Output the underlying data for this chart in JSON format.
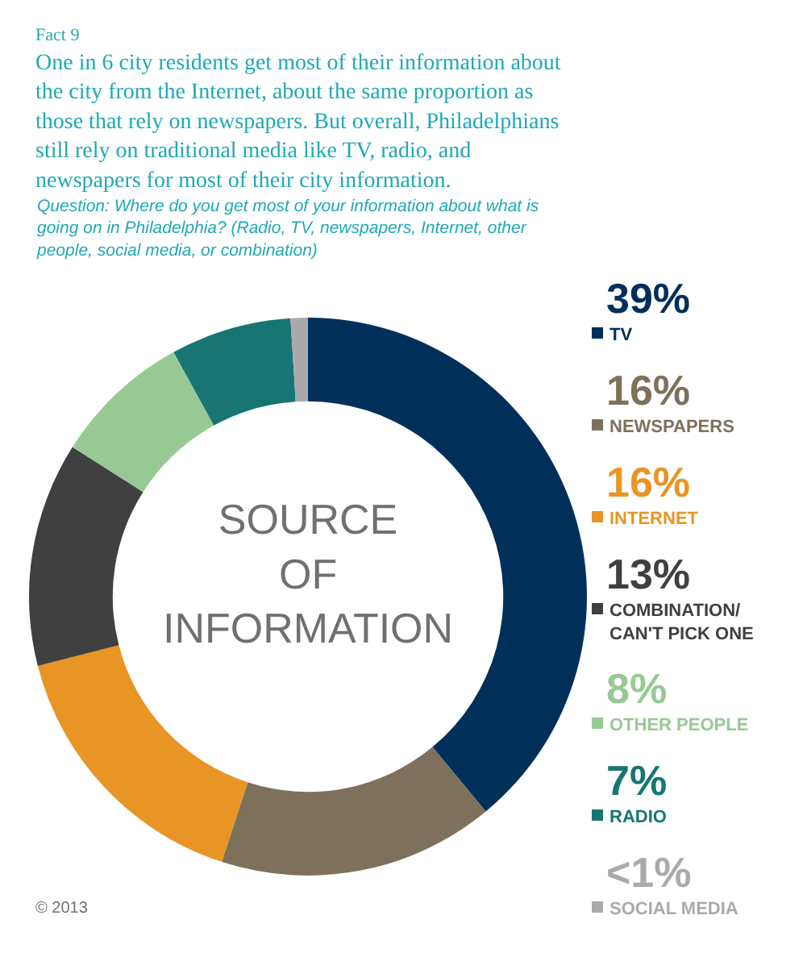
{
  "chart_data": {
    "type": "donut",
    "title": "One in 6 city residents get most of their information about the city from the Internet, about the same proportion as those that rely on newspapers. But overall, Philadelphians still rely on traditional media like TV, radio, and newspapers for most of their city information.",
    "subtitle": "Question: Where do you get most of your information about what is going on in Philadelphia? (Radio, TV, newspapers, Internet, other people, social media, or combination)",
    "categories": [
      "TV",
      "NEWSPAPERS",
      "INTERNET",
      "COMBINATION/ CAN'T PICK ONE",
      "OTHER PEOPLE",
      "RADIO",
      "SOCIAL MEDIA"
    ],
    "values": [
      39,
      16,
      16,
      13,
      8,
      7,
      1
    ],
    "value_labels": [
      "39%",
      "16%",
      "16%",
      "13%",
      "8%",
      "7%",
      "<1%"
    ],
    "colors": [
      "#00305a",
      "#7d715b",
      "#e89525",
      "#404040",
      "#98c995",
      "#177673",
      "#aaaaaa"
    ],
    "legend": "right",
    "annotations": [
      "Fact 9",
      "SOURCE OF INFORMATION",
      "© 2013"
    ]
  }
}
